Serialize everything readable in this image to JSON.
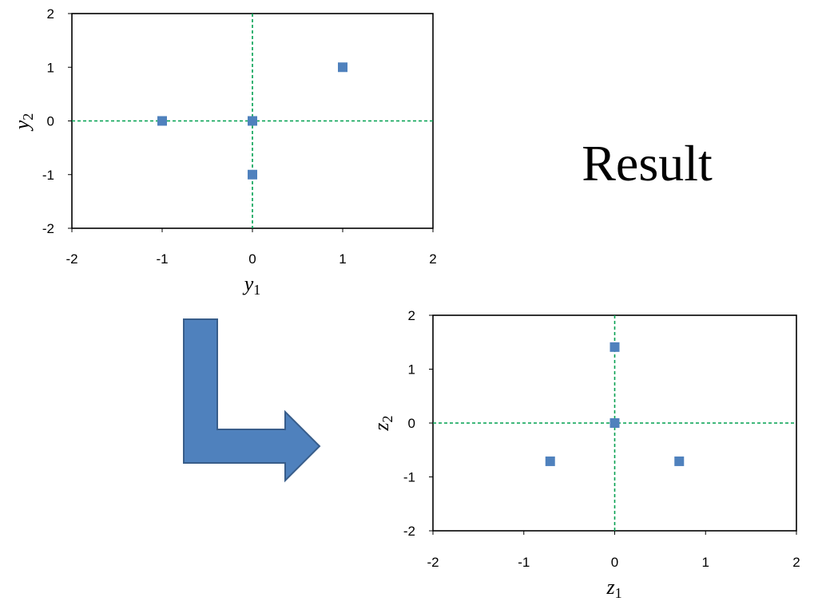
{
  "result_text": "Result",
  "colors": {
    "marker": "#4f81bd",
    "guide": "#00a050",
    "arrow_fill": "#4f81bd",
    "arrow_stroke": "#385d8a"
  },
  "chart_data": [
    {
      "type": "scatter",
      "xlabel": "y1",
      "xlabel_var": "y",
      "xlabel_sub": "1",
      "ylabel": "y2",
      "ylabel_var": "y",
      "ylabel_sub": "2",
      "xlim": [
        -2,
        2
      ],
      "ylim": [
        -2,
        2
      ],
      "xticks": [
        "-2",
        "-1",
        "0",
        "1",
        "2"
      ],
      "yticks": [
        "2",
        "1",
        "0",
        "-1",
        "-2"
      ],
      "grid": false,
      "reference_lines": {
        "x": 0,
        "y": 0,
        "style": "dashed"
      },
      "series": [
        {
          "x": [
            -1,
            0,
            0,
            1
          ],
          "y": [
            0,
            0,
            -1,
            1
          ]
        }
      ]
    },
    {
      "type": "scatter",
      "xlabel": "z1",
      "xlabel_var": "z",
      "xlabel_sub": "1",
      "ylabel": "z2",
      "ylabel_var": "z",
      "ylabel_sub": "2",
      "xlim": [
        -2,
        2
      ],
      "ylim": [
        -2,
        2
      ],
      "xticks": [
        "-2",
        "-1",
        "0",
        "1",
        "2"
      ],
      "yticks": [
        "2",
        "1",
        "0",
        "-1",
        "-2"
      ],
      "grid": false,
      "reference_lines": {
        "x": 0,
        "y": 0,
        "style": "dashed"
      },
      "series": [
        {
          "x": [
            0,
            0,
            -0.71,
            0.71
          ],
          "y": [
            1.41,
            0,
            -0.71,
            -0.71
          ]
        }
      ]
    }
  ]
}
